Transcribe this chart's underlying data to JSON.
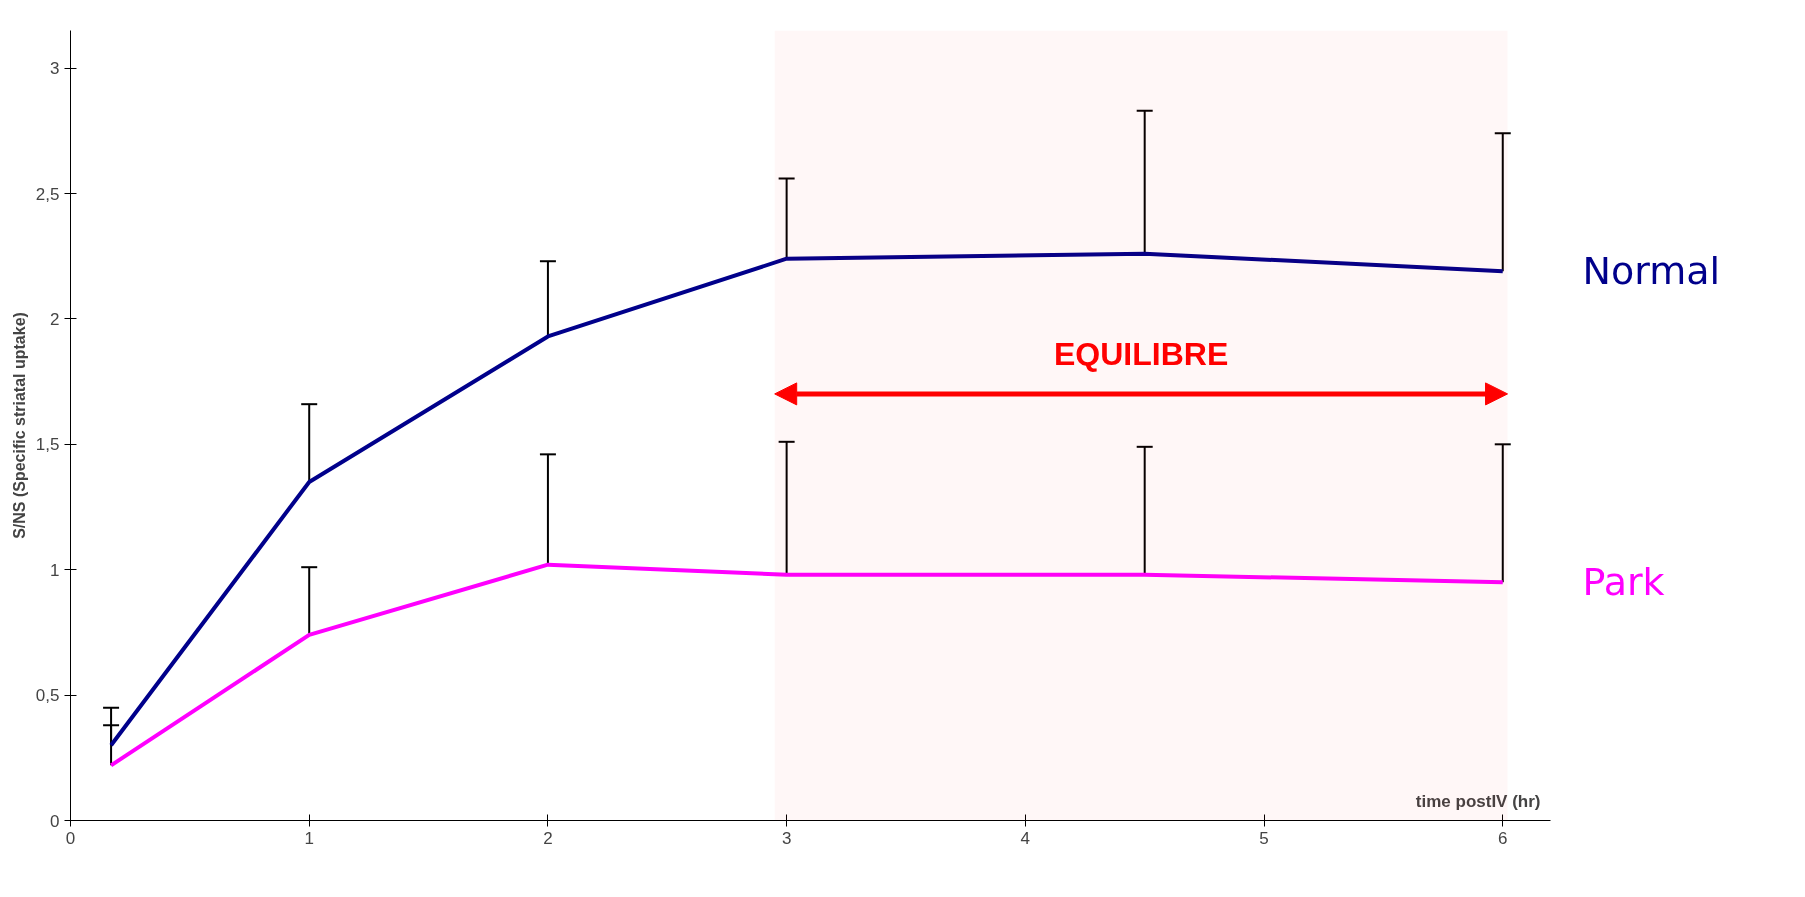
{
  "chart_data": {
    "type": "line",
    "xlabel": "time postIV (hr)",
    "ylabel": "S/NS (Specific striatal uptake)",
    "x": [
      0.17,
      1,
      2,
      3,
      4.5,
      6
    ],
    "series": [
      {
        "name": "Normal",
        "color": "#00008b",
        "values": [
          0.3,
          1.35,
          1.93,
          2.24,
          2.26,
          2.19
        ],
        "errors": [
          [
            0.3,
            0.45
          ],
          [
            1.35,
            1.66
          ],
          [
            1.93,
            2.23
          ],
          [
            2.24,
            2.56
          ],
          [
            2.26,
            2.83
          ],
          [
            2.19,
            2.74
          ]
        ]
      },
      {
        "name": "Park",
        "color": "#ff00ff",
        "values": [
          0.22,
          0.74,
          1.02,
          0.98,
          0.98,
          0.95
        ],
        "errors": [
          [
            0.22,
            0.38
          ],
          [
            0.74,
            1.01
          ],
          [
            1.02,
            1.46
          ],
          [
            0.98,
            1.51
          ],
          [
            0.98,
            1.49
          ],
          [
            0.95,
            1.5
          ]
        ]
      }
    ],
    "bands": [
      {
        "axis": "x",
        "from": 2.95,
        "to": 6.02,
        "label": "EQUILIBRE",
        "color": "#ff0000"
      }
    ],
    "xlim": [
      0,
      6.2
    ],
    "ylim": [
      0,
      3.15
    ],
    "xticks": [
      0,
      1,
      2,
      3,
      4,
      5,
      6
    ],
    "yticks": [
      0,
      {
        "value": 0.5,
        "label": "0,5"
      },
      1,
      {
        "value": 1.5,
        "label": "1,5"
      },
      2,
      {
        "value": 2.5,
        "label": "2,5"
      },
      3
    ],
    "grid": false,
    "marker": "none",
    "line_style": "solid"
  }
}
